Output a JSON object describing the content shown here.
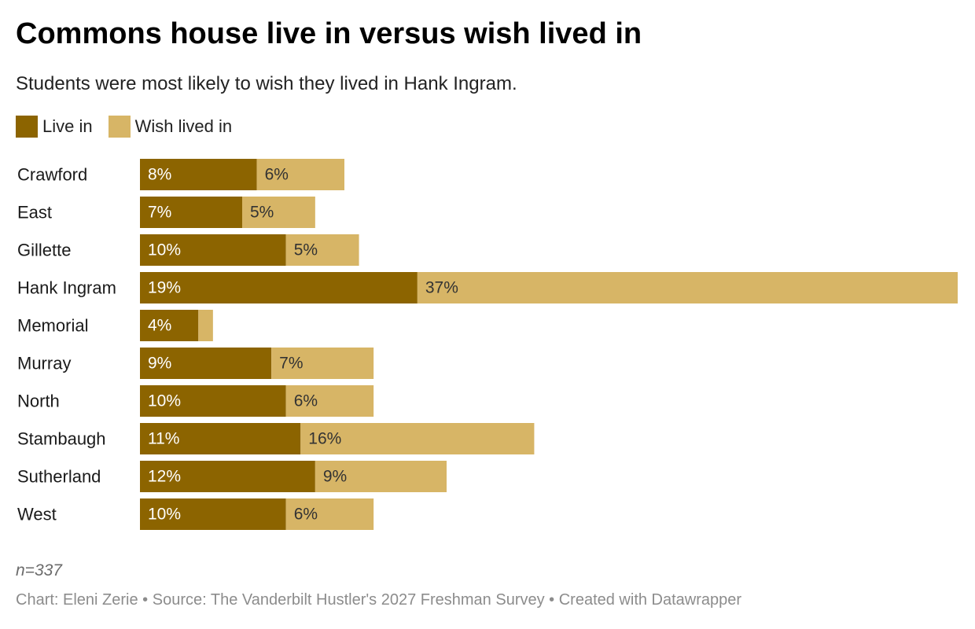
{
  "title": "Commons house live in versus wish lived in",
  "subtitle": "Students were most likely to wish they lived in Hank Ingram.",
  "note": "n=337",
  "credits": "Chart: Eleni Zerie • Source: The Vanderbilt Hustler's 2027 Freshman Survey • Created with Datawrapper",
  "legend": {
    "live_label": "Live in",
    "wish_label": "Wish lived in"
  },
  "colors": {
    "live": "#8c6400",
    "wish": "#d7b566",
    "live_text": "#ffffff",
    "wish_text": "#333333"
  },
  "chart_data": {
    "type": "bar",
    "orientation": "horizontal",
    "stacked": true,
    "categories": [
      "Crawford",
      "East",
      "Gillette",
      "Hank Ingram",
      "Memorial",
      "Murray",
      "North",
      "Stambaugh",
      "Sutherland",
      "West"
    ],
    "series": [
      {
        "name": "Live in",
        "values": [
          8,
          7,
          10,
          19,
          4,
          9,
          10,
          11,
          12,
          10
        ],
        "labels": [
          "8%",
          "7%",
          "10%",
          "19%",
          "4%",
          "9%",
          "10%",
          "11%",
          "12%",
          "10%"
        ]
      },
      {
        "name": "Wish lived in",
        "values": [
          6,
          5,
          5,
          37,
          1,
          7,
          6,
          16,
          9,
          6
        ],
        "labels": [
          "6%",
          "5%",
          "5%",
          "37%",
          "",
          "7%",
          "6%",
          "16%",
          "9%",
          "6%"
        ]
      }
    ],
    "unit": "%",
    "xlim": [
      0,
      56
    ],
    "legend_position": "top-left",
    "grid": false
  }
}
